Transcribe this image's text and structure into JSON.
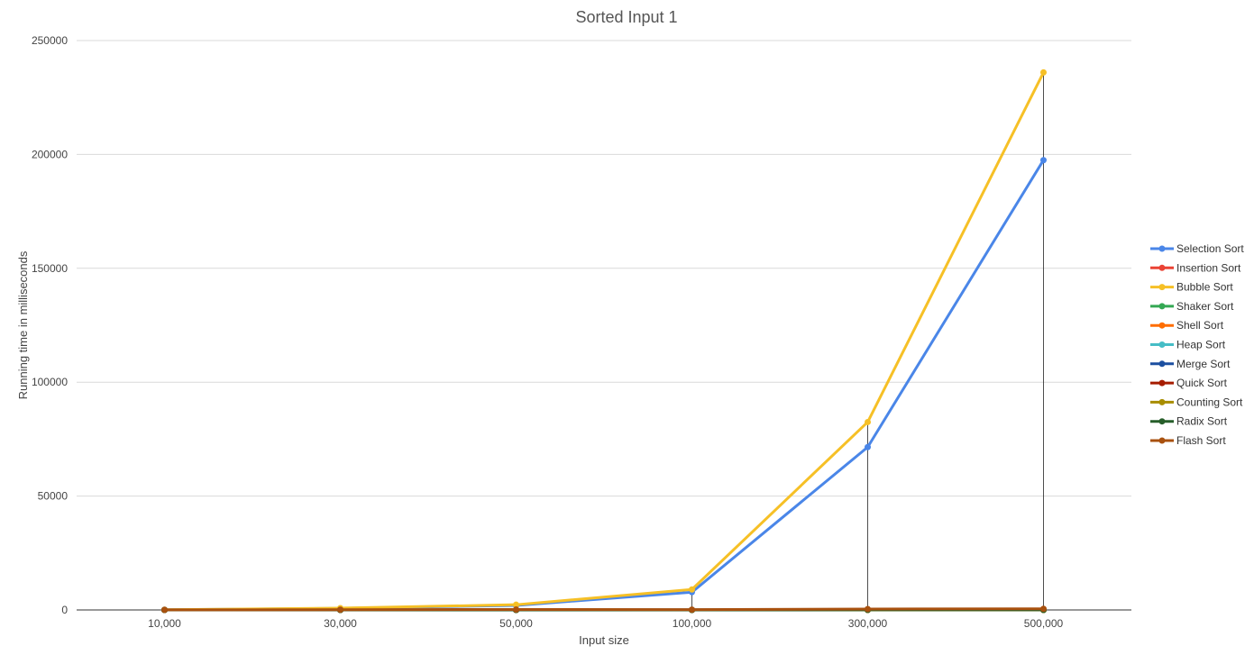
{
  "chart_data": {
    "type": "line",
    "title": "Sorted Input 1",
    "xlabel": "Input size",
    "ylabel": "Running time in milliseconds",
    "categories": [
      "10,000",
      "30,000",
      "50,000",
      "100,000",
      "300,000",
      "500,000"
    ],
    "ylim": [
      0,
      250000
    ],
    "yticks": [
      0,
      50000,
      100000,
      150000,
      200000,
      250000
    ],
    "grid": true,
    "legend_position": "right",
    "series": [
      {
        "name": "Selection Sort",
        "color": "#4a86e8",
        "values": [
          80,
          700,
          2000,
          7800,
          71500,
          197500
        ]
      },
      {
        "name": "Insertion Sort",
        "color": "#ea4335",
        "values": [
          0,
          0,
          0,
          0,
          0,
          0
        ]
      },
      {
        "name": "Bubble Sort",
        "color": "#f6c026",
        "values": [
          100,
          800,
          2300,
          9000,
          82500,
          236000
        ]
      },
      {
        "name": "Shaker Sort",
        "color": "#34a853",
        "values": [
          0,
          0,
          0,
          0,
          0,
          0
        ]
      },
      {
        "name": "Shell Sort",
        "color": "#ff6d01",
        "values": [
          2,
          5,
          8,
          15,
          50,
          80
        ]
      },
      {
        "name": "Heap Sort",
        "color": "#46bdc6",
        "values": [
          3,
          10,
          18,
          35,
          110,
          200
        ]
      },
      {
        "name": "Merge Sort",
        "color": "#1c4fa0",
        "values": [
          2,
          8,
          14,
          28,
          90,
          150
        ]
      },
      {
        "name": "Quick Sort",
        "color": "#a61c00",
        "values": [
          1,
          3,
          5,
          10,
          30,
          50
        ]
      },
      {
        "name": "Counting Sort",
        "color": "#a88d00",
        "values": [
          0,
          1,
          1,
          2,
          5,
          8
        ]
      },
      {
        "name": "Radix Sort",
        "color": "#275e2a",
        "values": [
          1,
          3,
          5,
          10,
          30,
          55
        ]
      },
      {
        "name": "Flash Sort",
        "color": "#a9510f",
        "values": [
          40,
          120,
          200,
          150,
          400,
          500
        ]
      }
    ]
  }
}
